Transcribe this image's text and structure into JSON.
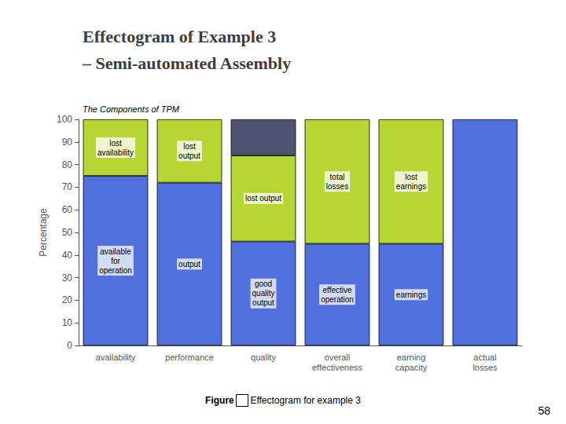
{
  "chart_data": {
    "type": "bar",
    "stacked": true,
    "title": "Effectogram of Example 3\n– Semi-automated Assembly",
    "subtitle": "The Components of TPM",
    "ylabel": "Percentage",
    "categories": [
      "availability",
      "performance",
      "quality",
      "overall\neffectiveness",
      "earning\ncapacity",
      "actual\nlosses"
    ],
    "series": [
      {
        "values": [
          75,
          72,
          46,
          45,
          45,
          100
        ],
        "labels": [
          "available\nfor\noperation",
          "output",
          "good\nquality\noutput",
          "effective\noperation",
          "earnings",
          null
        ]
      },
      {
        "values": [
          25,
          28,
          38,
          55,
          55,
          null
        ],
        "labels": [
          "lost\navailability",
          "lost\noutput",
          "lost output",
          "total\nlosses",
          "lost\nearnings",
          null
        ]
      },
      {
        "values": [
          null,
          null,
          16,
          null,
          null,
          null
        ]
      }
    ],
    "ylim": [
      0,
      100
    ],
    "yticks": [
      0,
      10,
      20,
      30,
      40,
      50,
      60,
      70,
      80,
      90,
      100
    ],
    "grid": false,
    "annotations": [
      "Figure",
      "Effectogram for example 3",
      "58"
    ]
  }
}
